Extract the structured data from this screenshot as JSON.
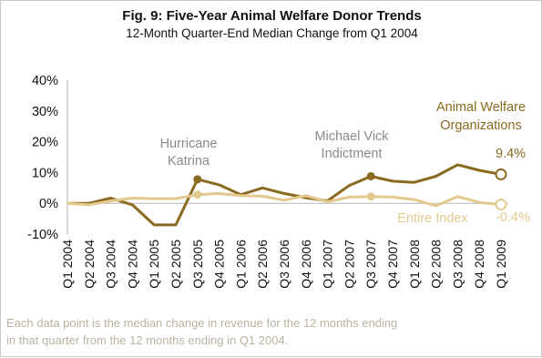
{
  "colors": {
    "animal_welfare": "#8a6a20",
    "entire_index": "#e3c98d",
    "annotation_gray": "#8a8a8a",
    "axis": "#b5b5b5",
    "footnote": "#b8b3a0"
  },
  "chart_data": {
    "type": "line",
    "title": "Fig. 9: Five-Year Animal Welfare Donor Trends",
    "subtitle": "12-Month Quarter-End Median Change from Q1 2004",
    "x": [
      "Q1 2004",
      "Q2 2004",
      "Q3 2004",
      "Q4 2004",
      "Q1 2005",
      "Q2 2005",
      "Q3 2005",
      "Q4 2005",
      "Q1 2006",
      "Q2 2006",
      "Q3 2006",
      "Q4 2006",
      "Q1 2007",
      "Q2 2007",
      "Q3 2007",
      "Q4 2007",
      "Q1 2008",
      "Q2 2008",
      "Q3 2008",
      "Q4 2008",
      "Q1 2009"
    ],
    "y_ticks": [
      "40%",
      "30%",
      "20%",
      "10%",
      "0%",
      "-10%"
    ],
    "ylim": [
      -10,
      40
    ],
    "grid": false,
    "series": [
      {
        "name": "Animal Welfare Organizations",
        "values": [
          0,
          0,
          1.7,
          -0.5,
          -7,
          -7,
          7.8,
          6,
          2.8,
          5,
          3.2,
          1.8,
          0.8,
          5.8,
          8.8,
          7.2,
          6.8,
          8.8,
          12.5,
          10.7,
          9.4
        ],
        "end_label": "9.4%"
      },
      {
        "name": "Entire Index",
        "values": [
          0,
          -0.5,
          0.8,
          1.7,
          1.5,
          1.5,
          2.8,
          3.2,
          2.5,
          2.3,
          1.0,
          2.5,
          0.5,
          2.0,
          2.2,
          2.0,
          1.2,
          -0.8,
          2.2,
          0.3,
          -0.4
        ],
        "end_label": "-0.4%"
      }
    ],
    "annotations": [
      {
        "text_lines": [
          "Hurricane",
          "Katrina"
        ]
      },
      {
        "text_lines": [
          "Michael Vick",
          "Indictment"
        ]
      }
    ]
  },
  "footnote_lines": [
    "Each data point is the median change in revenue for the 12 months ending",
    "in that quarter from the 12 months ending in Q1 2004."
  ]
}
